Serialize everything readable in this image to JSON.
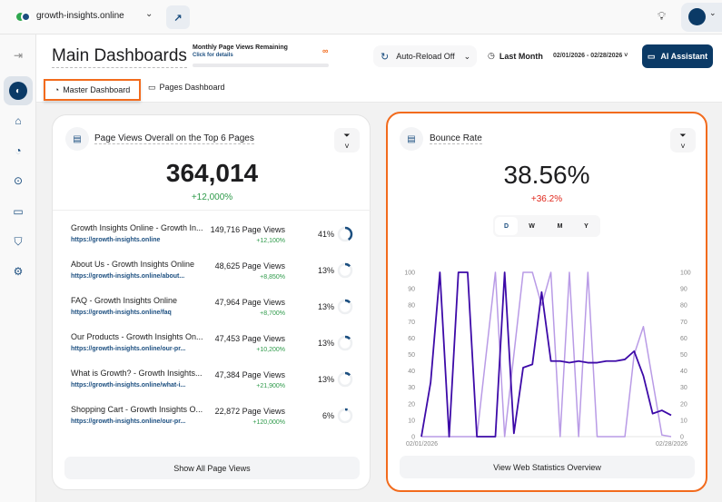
{
  "topbar": {
    "site": "growth-insights.online",
    "icons": [
      "site-logo-icon",
      "chevron-down-icon",
      "external-link-icon",
      "lightbulb-icon",
      "avatar",
      "chevron-down-icon"
    ]
  },
  "sidebar": {
    "items": [
      "expand-icon",
      "dashboard-icon",
      "box-icon",
      "gauge-icon",
      "scan-icon",
      "chat-icon",
      "shield-check-icon",
      "gear-icon"
    ],
    "active": 1
  },
  "header": {
    "title": "Main Dashboards",
    "quota_label": "Monthly Page Views Remaining",
    "quota_link": "Click for details",
    "quota_value": "∞",
    "auto_reload": "Auto-Reload Off",
    "period": "Last Month",
    "date_range": "02/01/2026 - 02/28/2026",
    "ai_button": "AI Assistant"
  },
  "tabs": [
    {
      "label": "Master Dashboard",
      "active": true
    },
    {
      "label": "Pages Dashboard",
      "active": false
    }
  ],
  "colors": {
    "accent": "#0b3a66",
    "highlight": "#f26b1d",
    "positive": "#2e9a4a",
    "negative": "#e0261b",
    "series_dark": "#3d0aa8",
    "series_light": "#b99be6"
  },
  "page_views": {
    "title": "Page Views Overall on the Top 6 Pages",
    "total": "364,014",
    "change": "+12,000%",
    "rows": [
      {
        "title": "Growth Insights Online - Growth In...",
        "url": "https://growth-insights.online",
        "views": "149,716 Page Views",
        "change": "+12,100%",
        "percent": "41%",
        "share": 41
      },
      {
        "title": "About Us - Growth Insights Online",
        "url": "https://growth-insights.online/about...",
        "views": "48,625 Page Views",
        "change": "+8,850%",
        "percent": "13%",
        "share": 13
      },
      {
        "title": "FAQ - Growth Insights Online",
        "url": "https://growth-insights.online/faq",
        "views": "47,964 Page Views",
        "change": "+8,700%",
        "percent": "13%",
        "share": 13
      },
      {
        "title": "Our Products - Growth Insights On...",
        "url": "https://growth-insights.online/our-pr...",
        "views": "47,453 Page Views",
        "change": "+10,200%",
        "percent": "13%",
        "share": 13
      },
      {
        "title": "What is Growth? - Growth Insights...",
        "url": "https://growth-insights.online/what-i...",
        "views": "47,384 Page Views",
        "change": "+21,900%",
        "percent": "13%",
        "share": 13
      },
      {
        "title": "Shopping Cart - Growth Insights O...",
        "url": "https://growth-insights.online/our-pr...",
        "views": "22,872 Page Views",
        "change": "+120,000%",
        "percent": "6%",
        "share": 6
      }
    ],
    "button": "Show All Page Views"
  },
  "bounce": {
    "title": "Bounce Rate",
    "value": "38.56%",
    "change": "+36.2%",
    "granularity": [
      "D",
      "W",
      "M",
      "Y"
    ],
    "selected": "D",
    "button": "View Web Statistics Overview"
  },
  "chart_data": {
    "type": "line",
    "x_start_label": "02/01/2026",
    "x_end_label": "02/28/2026",
    "ylim": [
      0,
      100
    ],
    "yticks": [
      0,
      10,
      20,
      30,
      40,
      50,
      60,
      70,
      80,
      90,
      100
    ],
    "dual_y_axis": true,
    "grid": false,
    "series": [
      {
        "color": "#3d0aa8",
        "values": [
          0,
          33,
          100,
          0,
          100,
          100,
          0,
          0,
          0,
          100,
          2,
          42,
          44,
          88,
          46,
          46,
          45,
          46,
          45,
          45,
          46,
          46,
          47,
          52,
          37,
          14,
          16,
          13
        ]
      },
      {
        "color": "#b99be6",
        "values": [
          0,
          0,
          0,
          0,
          0,
          0,
          0,
          50,
          100,
          0,
          50,
          100,
          100,
          80,
          100,
          0,
          100,
          0,
          100,
          0,
          0,
          0,
          0,
          50,
          67,
          34,
          1,
          0
        ]
      }
    ]
  }
}
